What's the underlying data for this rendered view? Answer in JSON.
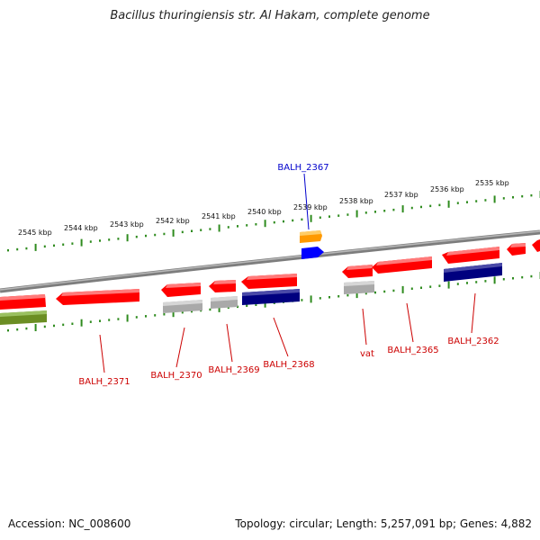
{
  "title": "Bacillus thuringiensis str. Al Hakam, complete genome",
  "footer": {
    "accession": "Accession: NC_008600",
    "summary": "Topology: circular; Length: 5,257,091 bp; Genes: 4,882"
  },
  "scale": {
    "ticks": [
      "2545 kbp",
      "2544 kbp",
      "2543 kbp",
      "2542 kbp",
      "2541 kbp",
      "2540 kbp",
      "2539 kbp",
      "2538 kbp",
      "2537 kbp",
      "2536 kbp",
      "2535 kbp"
    ]
  },
  "colors": {
    "backbone": "#8c8c8c",
    "tick": "#2e8b1e",
    "cds": "#ff0000",
    "rna": "#b0b0b0",
    "category_navy": "#00007f",
    "category_olive": "#6b8e23",
    "category_orange": "#ff9900",
    "category_blue": "#0000ff",
    "label_red": "#cc0000",
    "label_blue": "#0000cc"
  },
  "gene_labels": [
    {
      "text": "BALH_2367",
      "color": "blue"
    },
    {
      "text": "BALH_2371",
      "color": "red"
    },
    {
      "text": "BALH_2370",
      "color": "red"
    },
    {
      "text": "BALH_2369",
      "color": "red"
    },
    {
      "text": "BALH_2368",
      "color": "red"
    },
    {
      "text": "vat",
      "color": "red"
    },
    {
      "text": "BALH_2365",
      "color": "red"
    },
    {
      "text": "BALH_2362",
      "color": "red"
    }
  ]
}
